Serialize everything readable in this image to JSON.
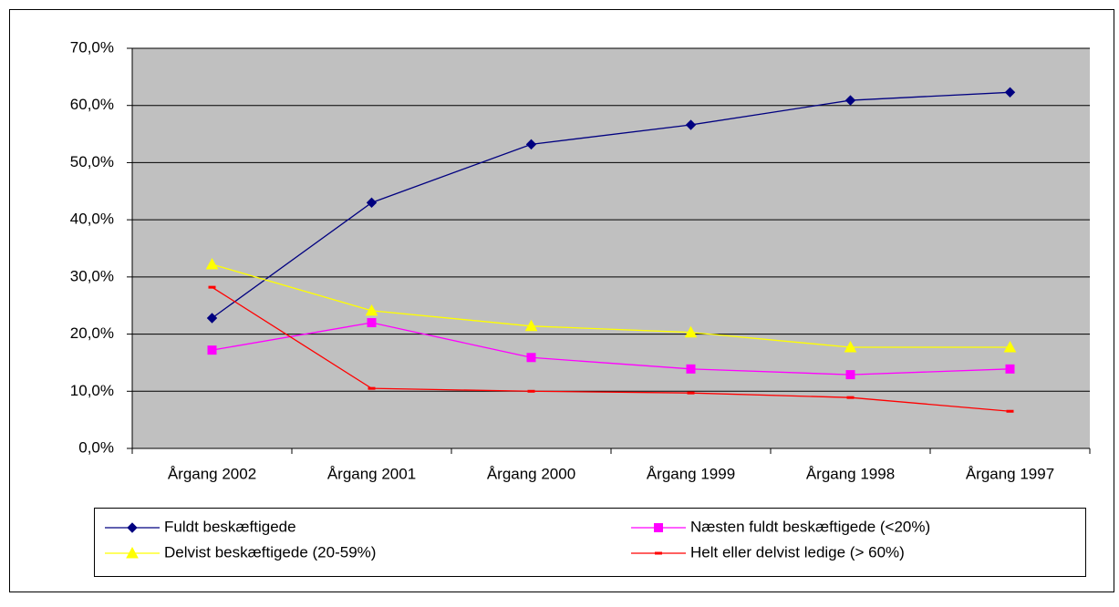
{
  "chart_data": {
    "type": "line",
    "categories": [
      "Årgang 2002",
      "Årgang 2001",
      "Årgang 2000",
      "Årgang 1999",
      "Årgang 1998",
      "Årgang 1997"
    ],
    "series": [
      {
        "name": "Fuldt beskæftigede",
        "color": "#000080",
        "marker": "diamond",
        "values": [
          22.8,
          43.0,
          53.2,
          56.6,
          60.9,
          62.3
        ]
      },
      {
        "name": "Næsten fuldt beskæftigede (<20%)",
        "color": "#ff00ff",
        "marker": "square",
        "values": [
          17.2,
          22.0,
          15.9,
          13.9,
          12.9,
          13.9
        ]
      },
      {
        "name": "Delvist beskæftigede (20-59%)",
        "color": "#ffff00",
        "marker": "triangle",
        "values": [
          32.2,
          24.1,
          21.4,
          20.3,
          17.7,
          17.7
        ]
      },
      {
        "name": "Helt eller delvist ledige (> 60%)",
        "color": "#ff0000",
        "marker": "dash",
        "values": [
          28.2,
          10.5,
          10.0,
          9.7,
          8.9,
          6.5
        ]
      }
    ],
    "ylim": [
      0,
      70
    ],
    "yticks": [
      {
        "value": 0,
        "label": "0,0%"
      },
      {
        "value": 10,
        "label": "10,0%"
      },
      {
        "value": 20,
        "label": "20,0%"
      },
      {
        "value": 30,
        "label": "30,0%"
      },
      {
        "value": 40,
        "label": "40,0%"
      },
      {
        "value": 50,
        "label": "50,0%"
      },
      {
        "value": 60,
        "label": "60,0%"
      },
      {
        "value": 70,
        "label": "70,0%"
      }
    ],
    "grid": true,
    "plot_background": "#c0c0c0",
    "legend": "bottom"
  }
}
